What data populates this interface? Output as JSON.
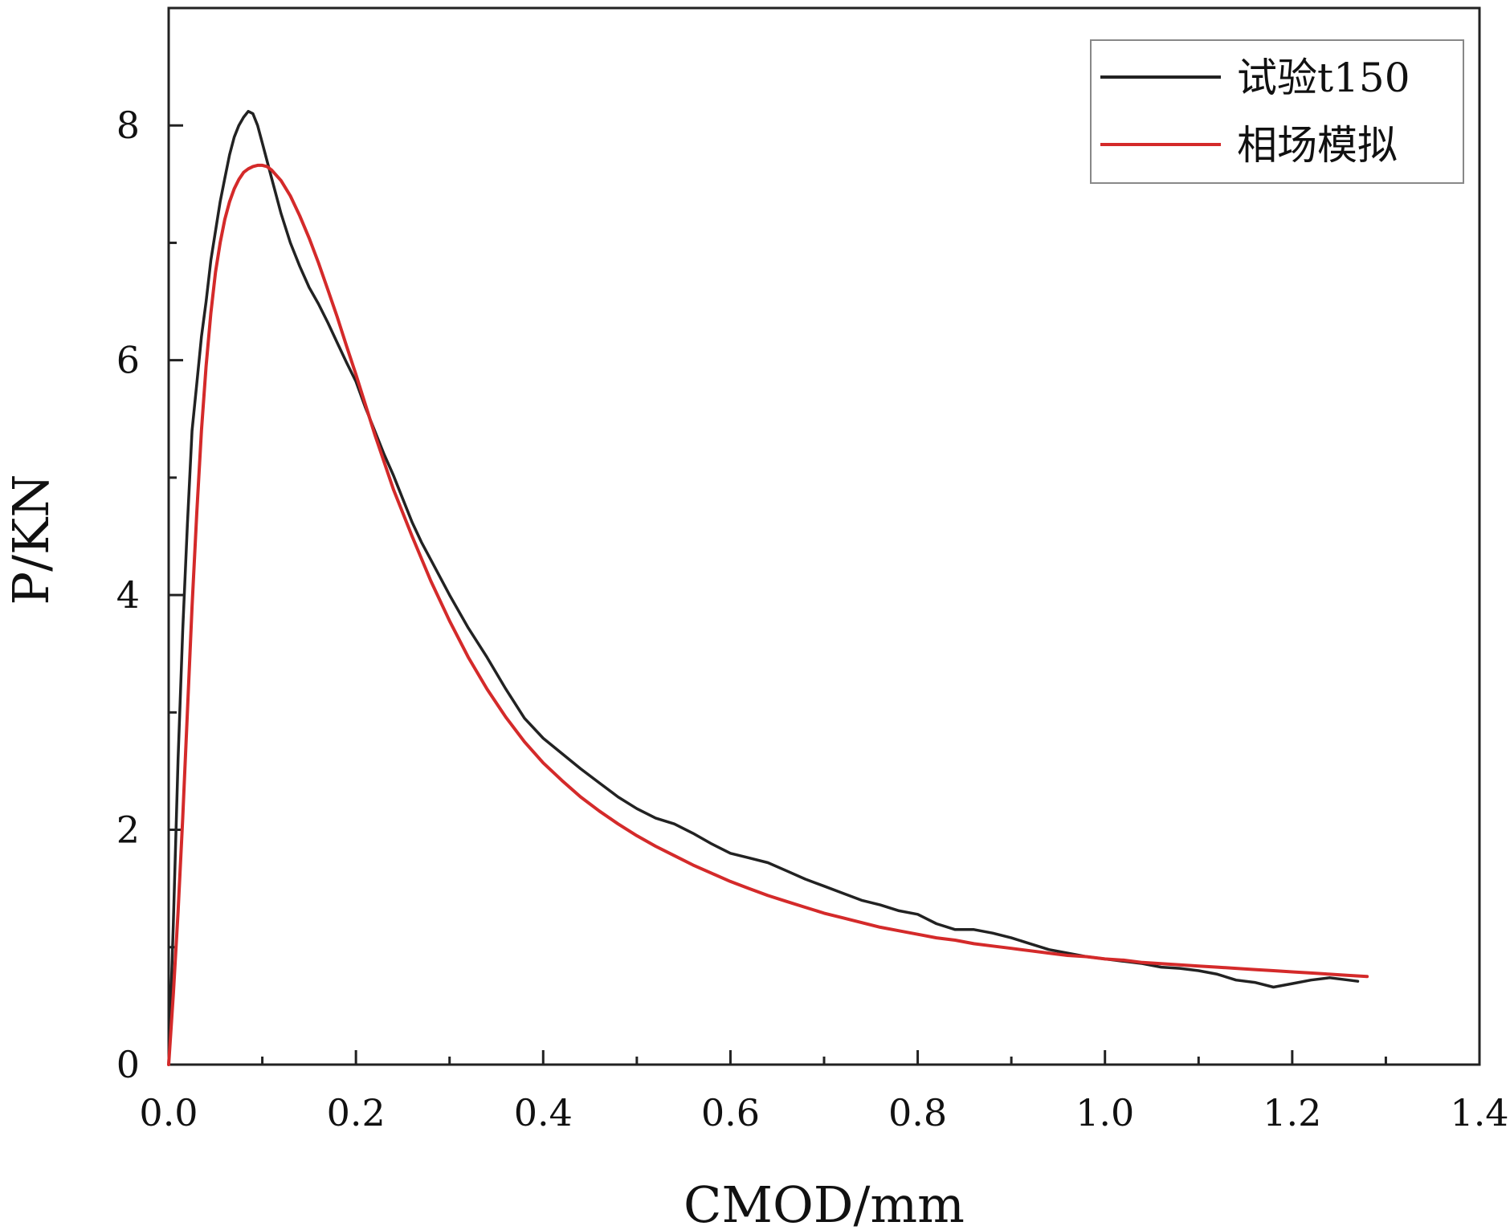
{
  "chart_data": {
    "type": "line",
    "title": "",
    "xlabel": "CMOD/mm",
    "ylabel": "P/KN",
    "xlim": [
      0.0,
      1.4
    ],
    "ylim": [
      0,
      9
    ],
    "grid": false,
    "legend_position": "top-right",
    "x_ticks": [
      0.0,
      0.2,
      0.4,
      0.6,
      0.8,
      1.0,
      1.2,
      1.4
    ],
    "x_tick_labels": [
      "0.0",
      "0.2",
      "0.4",
      "0.6",
      "0.8",
      "1.0",
      "1.2",
      "1.4"
    ],
    "y_ticks": [
      0,
      2,
      4,
      6,
      8
    ],
    "y_tick_labels": [
      "0",
      "2",
      "4",
      "6",
      "8"
    ],
    "series": [
      {
        "name": "试验t150",
        "color": "#222222",
        "x": [
          0.0,
          0.005,
          0.01,
          0.015,
          0.02,
          0.025,
          0.03,
          0.035,
          0.04,
          0.045,
          0.05,
          0.055,
          0.06,
          0.065,
          0.07,
          0.075,
          0.08,
          0.085,
          0.09,
          0.095,
          0.1,
          0.11,
          0.12,
          0.13,
          0.14,
          0.15,
          0.16,
          0.17,
          0.18,
          0.19,
          0.2,
          0.21,
          0.22,
          0.23,
          0.24,
          0.25,
          0.26,
          0.27,
          0.28,
          0.3,
          0.32,
          0.34,
          0.36,
          0.38,
          0.4,
          0.42,
          0.44,
          0.46,
          0.48,
          0.5,
          0.52,
          0.54,
          0.56,
          0.58,
          0.6,
          0.62,
          0.64,
          0.66,
          0.68,
          0.7,
          0.72,
          0.74,
          0.76,
          0.78,
          0.8,
          0.82,
          0.84,
          0.86,
          0.88,
          0.9,
          0.92,
          0.94,
          0.96,
          0.98,
          1.0,
          1.02,
          1.04,
          1.06,
          1.08,
          1.1,
          1.12,
          1.14,
          1.16,
          1.18,
          1.2,
          1.22,
          1.24,
          1.26,
          1.27
        ],
        "y": [
          0.0,
          1.2,
          2.6,
          3.7,
          4.6,
          5.4,
          5.8,
          6.2,
          6.5,
          6.85,
          7.1,
          7.35,
          7.55,
          7.75,
          7.9,
          8.0,
          8.07,
          8.12,
          8.1,
          8.0,
          7.85,
          7.55,
          7.25,
          7.0,
          6.8,
          6.62,
          6.48,
          6.32,
          6.15,
          5.98,
          5.82,
          5.6,
          5.4,
          5.2,
          5.02,
          4.82,
          4.62,
          4.45,
          4.3,
          4.0,
          3.72,
          3.47,
          3.2,
          2.95,
          2.78,
          2.65,
          2.52,
          2.4,
          2.28,
          2.18,
          2.1,
          2.05,
          1.97,
          1.88,
          1.8,
          1.76,
          1.72,
          1.65,
          1.58,
          1.52,
          1.46,
          1.4,
          1.36,
          1.31,
          1.28,
          1.2,
          1.15,
          1.15,
          1.12,
          1.08,
          1.03,
          0.98,
          0.95,
          0.92,
          0.9,
          0.88,
          0.86,
          0.83,
          0.82,
          0.8,
          0.77,
          0.72,
          0.7,
          0.66,
          0.69,
          0.72,
          0.74,
          0.72,
          0.71
        ]
      },
      {
        "name": "相场模拟",
        "color": "#d42a2a",
        "x": [
          0.0,
          0.005,
          0.01,
          0.015,
          0.02,
          0.025,
          0.03,
          0.035,
          0.04,
          0.045,
          0.05,
          0.055,
          0.06,
          0.065,
          0.07,
          0.075,
          0.08,
          0.085,
          0.09,
          0.095,
          0.1,
          0.105,
          0.11,
          0.12,
          0.13,
          0.14,
          0.15,
          0.16,
          0.17,
          0.18,
          0.19,
          0.2,
          0.22,
          0.24,
          0.26,
          0.28,
          0.3,
          0.32,
          0.34,
          0.36,
          0.38,
          0.4,
          0.42,
          0.44,
          0.46,
          0.48,
          0.5,
          0.52,
          0.54,
          0.56,
          0.58,
          0.6,
          0.62,
          0.64,
          0.66,
          0.68,
          0.7,
          0.72,
          0.74,
          0.76,
          0.78,
          0.8,
          0.82,
          0.84,
          0.86,
          0.88,
          0.9,
          0.92,
          0.94,
          0.96,
          0.98,
          1.0,
          1.02,
          1.04,
          1.06,
          1.08,
          1.1,
          1.12,
          1.14,
          1.16,
          1.18,
          1.2,
          1.22,
          1.24,
          1.26,
          1.28
        ],
        "y": [
          0.0,
          0.6,
          1.3,
          2.1,
          3.0,
          3.9,
          4.7,
          5.4,
          5.95,
          6.4,
          6.75,
          7.0,
          7.2,
          7.35,
          7.46,
          7.54,
          7.6,
          7.63,
          7.65,
          7.66,
          7.66,
          7.65,
          7.62,
          7.53,
          7.4,
          7.23,
          7.04,
          6.83,
          6.6,
          6.37,
          6.12,
          5.88,
          5.37,
          4.9,
          4.5,
          4.12,
          3.78,
          3.47,
          3.2,
          2.96,
          2.75,
          2.57,
          2.42,
          2.28,
          2.16,
          2.05,
          1.95,
          1.86,
          1.78,
          1.7,
          1.63,
          1.56,
          1.5,
          1.44,
          1.39,
          1.34,
          1.29,
          1.25,
          1.21,
          1.17,
          1.14,
          1.11,
          1.08,
          1.06,
          1.03,
          1.01,
          0.99,
          0.97,
          0.95,
          0.93,
          0.92,
          0.9,
          0.89,
          0.87,
          0.86,
          0.85,
          0.84,
          0.83,
          0.82,
          0.81,
          0.8,
          0.79,
          0.78,
          0.77,
          0.76,
          0.75
        ]
      }
    ]
  }
}
